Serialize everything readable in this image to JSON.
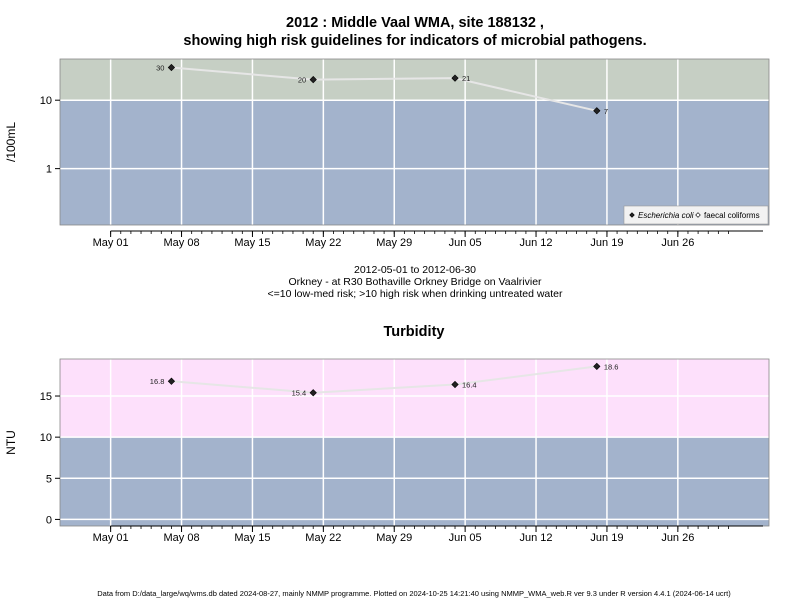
{
  "footer": "Data from D:/data_large/wq/wms.db dated 2024-08-27, mainly NMMP programme. Plotted on 2024-10-25 14:21:40 using NMMP_WMA_web.R ver 9.3 under R version 4.4.1 (2024-06-14 ucrt)",
  "chart_data": [
    {
      "type": "line",
      "title": "2012 : Middle Vaal WMA, site 188132 ,",
      "title2": "showing high risk guidelines for indicators of microbial pathogens.",
      "ylabel": "/100mL",
      "xlabel": "",
      "x_axis": "date",
      "xlim": [
        "2012-04-26",
        "2012-07-05"
      ],
      "xticks": [
        {
          "date": "2012-05-01",
          "label": "May 01"
        },
        {
          "date": "2012-05-08",
          "label": "May 08"
        },
        {
          "date": "2012-05-15",
          "label": "May 15"
        },
        {
          "date": "2012-05-22",
          "label": "May 22"
        },
        {
          "date": "2012-05-29",
          "label": "May 29"
        },
        {
          "date": "2012-06-05",
          "label": "Jun 05"
        },
        {
          "date": "2012-06-12",
          "label": "Jun 12"
        },
        {
          "date": "2012-06-19",
          "label": "Jun 19"
        },
        {
          "date": "2012-06-26",
          "label": "Jun 26"
        }
      ],
      "y_scale": "log10",
      "ylim": [
        0.15,
        40
      ],
      "yticks": [
        {
          "value": 1,
          "label": "1"
        },
        {
          "value": 10,
          "label": "10"
        }
      ],
      "grid": true,
      "threshold": 10,
      "zone_colors": {
        "above": "#c6cfc4",
        "below": "#a3b3cc"
      },
      "series": [
        {
          "name": "Escherichia coli",
          "marker": "filled-diamond",
          "points": [
            {
              "x": "2012-05-07",
              "y": 30,
              "label": "30"
            },
            {
              "x": "2012-05-21",
              "y": 20,
              "label": "20"
            },
            {
              "x": "2012-06-04",
              "y": 21,
              "label": "21"
            },
            {
              "x": "2012-06-18",
              "y": 7,
              "label": "7"
            }
          ]
        },
        {
          "name": "faecal coliforms",
          "marker": "open-diamond",
          "points": []
        }
      ],
      "legend_position": "bottom-right",
      "subtitle_lines": [
        "2012-05-01 to 2012-06-30",
        "Orkney - at R30 Bothaville Orkney Bridge on Vaalrivier",
        "<=10 low-med risk; >10 high risk when drinking untreated water"
      ]
    },
    {
      "type": "line",
      "title": "Turbidity",
      "ylabel": "NTU",
      "xlabel": "",
      "x_axis": "date",
      "xlim": [
        "2012-04-26",
        "2012-07-05"
      ],
      "xticks": [
        {
          "date": "2012-05-01",
          "label": "May 01"
        },
        {
          "date": "2012-05-08",
          "label": "May 08"
        },
        {
          "date": "2012-05-15",
          "label": "May 15"
        },
        {
          "date": "2012-05-22",
          "label": "May 22"
        },
        {
          "date": "2012-05-29",
          "label": "May 29"
        },
        {
          "date": "2012-06-05",
          "label": "Jun 05"
        },
        {
          "date": "2012-06-12",
          "label": "Jun 12"
        },
        {
          "date": "2012-06-19",
          "label": "Jun 19"
        },
        {
          "date": "2012-06-26",
          "label": "Jun 26"
        }
      ],
      "y_scale": "linear",
      "ylim": [
        -0.8,
        19.5
      ],
      "yticks": [
        {
          "value": 0,
          "label": "0"
        },
        {
          "value": 5,
          "label": "5"
        },
        {
          "value": 10,
          "label": "10"
        },
        {
          "value": 15,
          "label": "15"
        }
      ],
      "grid": true,
      "threshold": 10,
      "zone_colors": {
        "above": "#fde0fb",
        "below": "#a3b3cc"
      },
      "series": [
        {
          "marker": "filled-diamond",
          "points": [
            {
              "x": "2012-05-07",
              "y": 16.8,
              "label": "16.8"
            },
            {
              "x": "2012-05-21",
              "y": 15.4,
              "label": "15.4"
            },
            {
              "x": "2012-06-04",
              "y": 16.4,
              "label": "16.4"
            },
            {
              "x": "2012-06-18",
              "y": 18.6,
              "label": "18.6"
            }
          ]
        }
      ]
    }
  ]
}
